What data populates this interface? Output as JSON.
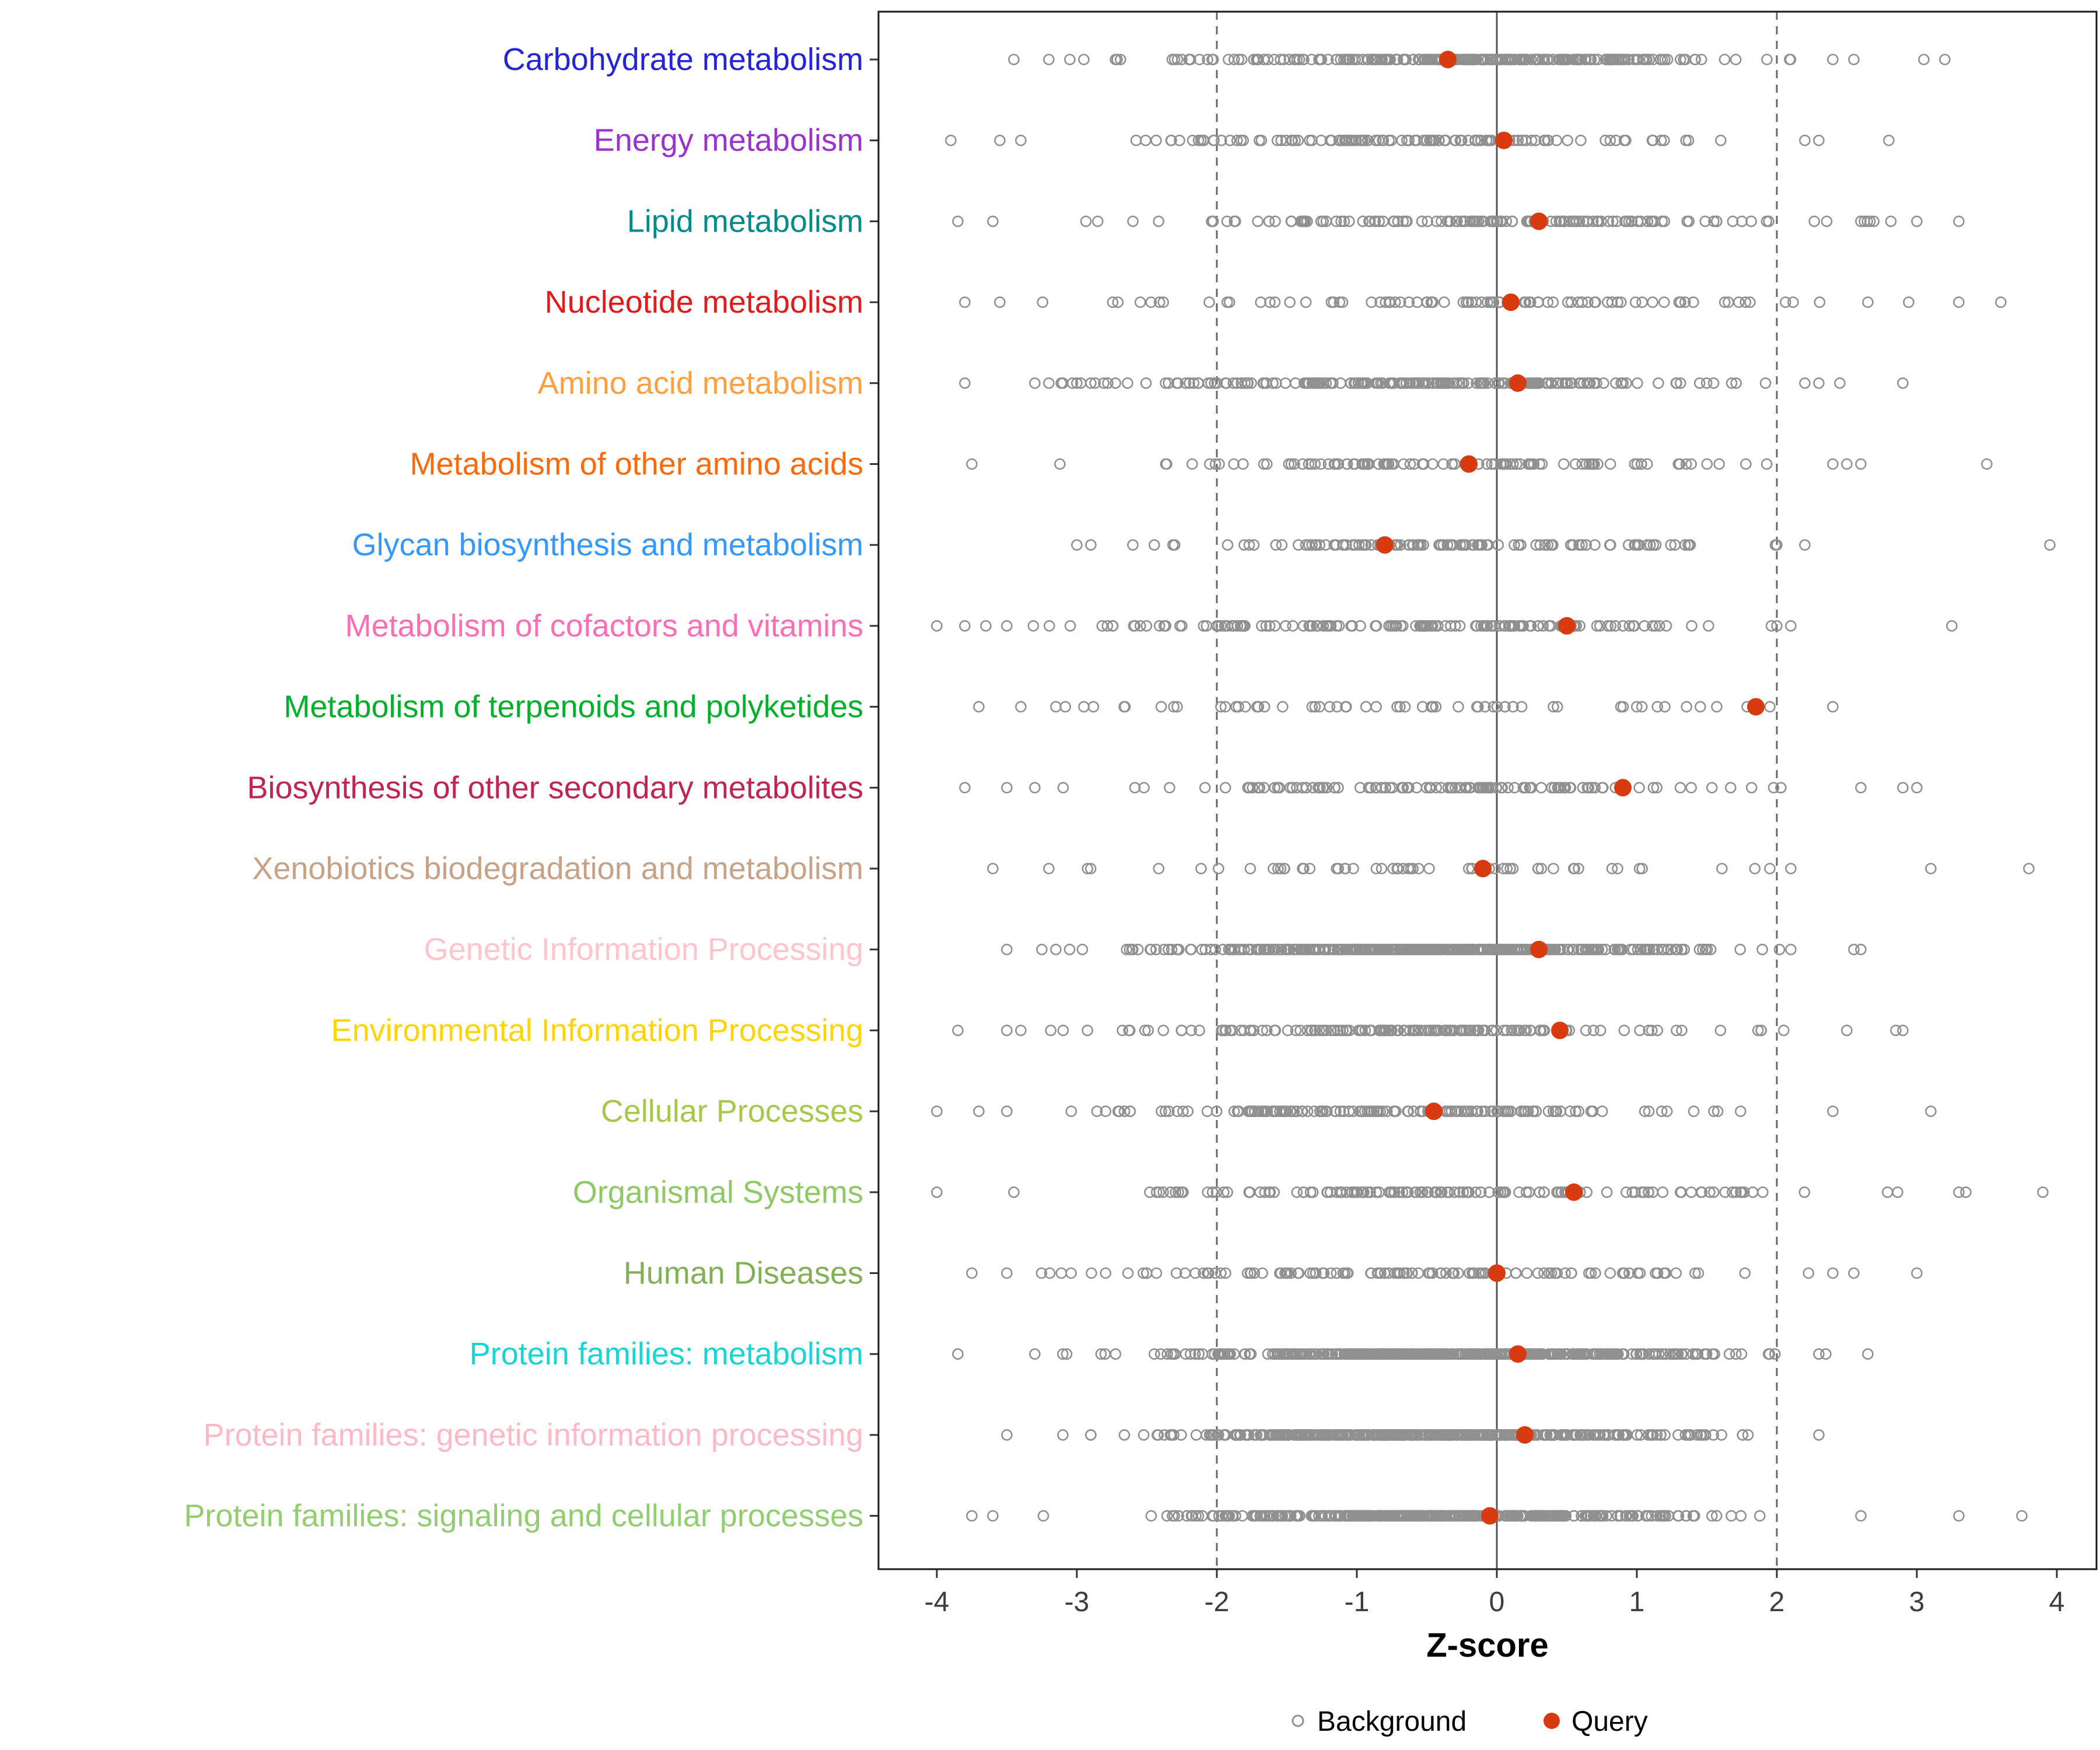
{
  "chart_data": {
    "type": "scatter",
    "subtype": "strip-plot",
    "title": "",
    "xlabel": "Z-score",
    "x_ticks": [
      -4,
      -3,
      -2,
      -1,
      0,
      1,
      2,
      3,
      4
    ],
    "x_range": [
      -4.4,
      4.3
    ],
    "zero_line": 0,
    "threshold_lines": [
      -2,
      2
    ],
    "grid": false,
    "legend": {
      "position": "bottom",
      "background_label": "Background",
      "query_label": "Query"
    },
    "colors": {
      "background_point": "#909090",
      "query_point": "#D93B10",
      "axis_text": "#3c3c3c",
      "panel_border": "#1a1a1a",
      "zero_line": "#555555",
      "threshold_line": "#666666",
      "legend_text": "#000000"
    },
    "series": [
      {
        "label": "Carbohydrate metabolism",
        "color": "#2323DC",
        "query": -0.35,
        "background": {
          "n": 280,
          "mean": -0.2,
          "sd": 0.95,
          "min": -3.3,
          "max": 2.3,
          "seed": 11,
          "outliers": [
            -3.45,
            -3.2,
            -3.05,
            -2.95,
            2.4,
            2.55,
            3.05,
            3.2
          ]
        }
      },
      {
        "label": "Energy metabolism",
        "color": "#9A32CD",
        "query": 0.05,
        "background": {
          "n": 120,
          "mean": -0.7,
          "sd": 1.0,
          "min": -3.4,
          "max": 2.2,
          "seed": 12,
          "outliers": [
            -3.9,
            -3.55,
            -3.4,
            2.2,
            2.3,
            2.8
          ]
        }
      },
      {
        "label": "Lipid metabolism",
        "color": "#008B8B",
        "query": 0.3,
        "background": {
          "n": 140,
          "mean": 0.1,
          "sd": 1.15,
          "min": -3.3,
          "max": 2.9,
          "seed": 13,
          "outliers": [
            -3.85,
            -3.6,
            2.6,
            3.0,
            3.3
          ]
        }
      },
      {
        "label": "Nucleotide metabolism",
        "color": "#E31A1C",
        "query": 0.1,
        "background": {
          "n": 85,
          "mean": 0.0,
          "sd": 1.3,
          "min": -3.5,
          "max": 3.3,
          "seed": 14,
          "outliers": [
            -3.8,
            -3.55,
            2.65,
            3.3,
            3.6
          ]
        }
      },
      {
        "label": "Amino acid metabolism",
        "color": "#FFA040",
        "query": 0.15,
        "background": {
          "n": 200,
          "mean": -0.5,
          "sd": 1.05,
          "min": -3.2,
          "max": 2.2,
          "seed": 15,
          "outliers": [
            -3.8,
            -3.3,
            -3.2,
            -3.1,
            -3.0,
            -2.9,
            2.2,
            2.3,
            2.45,
            2.9
          ]
        }
      },
      {
        "label": "Metabolism of other amino acids",
        "color": "#FB6A0A",
        "query": -0.2,
        "background": {
          "n": 105,
          "mean": -0.3,
          "sd": 1.1,
          "min": -3.2,
          "max": 2.4,
          "seed": 16,
          "outliers": [
            -3.75,
            2.4,
            2.5,
            2.6,
            3.5
          ]
        }
      },
      {
        "label": "Glycan biosynthesis and metabolism",
        "color": "#3399FF",
        "query": -0.8,
        "background": {
          "n": 110,
          "mean": -0.4,
          "sd": 1.0,
          "min": -2.9,
          "max": 2.2,
          "seed": 17,
          "outliers": [
            -3.0,
            -2.9,
            -2.6,
            2.0,
            2.2,
            3.95
          ]
        }
      },
      {
        "label": "Metabolism of cofactors and vitamins",
        "color": "#FF6EB4",
        "query": 0.5,
        "background": {
          "n": 145,
          "mean": -0.6,
          "sd": 1.15,
          "min": -3.4,
          "max": 2.0,
          "seed": 18,
          "outliers": [
            -4.0,
            -3.8,
            -3.65,
            -3.5,
            2.0,
            2.1,
            3.25
          ]
        }
      },
      {
        "label": "Metabolism of terpenoids and polyketides",
        "color": "#00B02A",
        "query": 1.85,
        "background": {
          "n": 55,
          "mean": -0.6,
          "sd": 1.25,
          "min": -3.2,
          "max": 1.9,
          "seed": 19,
          "outliers": [
            -3.7,
            -3.4,
            -3.15,
            -2.95,
            1.95,
            2.4
          ]
        }
      },
      {
        "label": "Biosynthesis of other secondary metabolites",
        "color": "#C02455",
        "query": 0.9,
        "background": {
          "n": 115,
          "mean": -0.6,
          "sd": 1.1,
          "min": -3.2,
          "max": 2.4,
          "seed": 20,
          "outliers": [
            -3.8,
            -3.5,
            -3.3,
            2.6,
            2.9,
            3.0
          ]
        }
      },
      {
        "label": "Xenobiotics biodegradation and metabolism",
        "color": "#C8A287",
        "query": -0.1,
        "background": {
          "n": 55,
          "mean": -0.4,
          "sd": 1.2,
          "min": -3.2,
          "max": 2.2,
          "seed": 21,
          "outliers": [
            -3.6,
            -3.2,
            2.1,
            3.1,
            3.8
          ]
        }
      },
      {
        "label": "Genetic Information Processing",
        "color": "#FFC4CC",
        "query": 0.3,
        "background": {
          "n": 420,
          "mean": -0.5,
          "sd": 0.95,
          "min": -3.2,
          "max": 2.1,
          "seed": 22,
          "outliers": [
            -3.5,
            -3.25,
            -3.15,
            2.1,
            2.55,
            2.6
          ]
        }
      },
      {
        "label": "Environmental Information Processing",
        "color": "#FFD404",
        "query": 0.45,
        "background": {
          "n": 150,
          "mean": -0.8,
          "sd": 1.1,
          "min": -3.3,
          "max": 2.4,
          "seed": 23,
          "outliers": [
            -3.85,
            -3.5,
            -3.4,
            2.5,
            2.85,
            2.9
          ]
        }
      },
      {
        "label": "Cellular Processes",
        "color": "#A8C84B",
        "query": -0.45,
        "background": {
          "n": 150,
          "mean": -0.9,
          "sd": 1.1,
          "min": -3.4,
          "max": 2.2,
          "seed": 24,
          "outliers": [
            -4.0,
            -3.7,
            -3.5,
            2.4,
            3.1
          ]
        }
      },
      {
        "label": "Organismal Systems",
        "color": "#8FC965",
        "query": 0.55,
        "background": {
          "n": 140,
          "mean": -0.4,
          "sd": 1.25,
          "min": -3.3,
          "max": 3.0,
          "seed": 25,
          "outliers": [
            -4.0,
            -3.45,
            3.3,
            3.35,
            3.9
          ]
        }
      },
      {
        "label": "Human Diseases",
        "color": "#83AF57",
        "query": 0.0,
        "background": {
          "n": 125,
          "mean": -0.7,
          "sd": 1.1,
          "min": -3.4,
          "max": 2.3,
          "seed": 26,
          "outliers": [
            -3.75,
            -3.5,
            2.4,
            2.55,
            3.0
          ]
        }
      },
      {
        "label": "Protein families: metabolism",
        "color": "#17D5D5",
        "query": 0.15,
        "background": {
          "n": 480,
          "mean": -0.3,
          "sd": 0.9,
          "min": -3.3,
          "max": 2.2,
          "seed": 27,
          "outliers": [
            -3.85,
            -3.3,
            -3.1,
            2.3,
            2.35,
            2.65
          ]
        }
      },
      {
        "label": "Protein families: genetic information processing",
        "color": "#FFB9C6",
        "query": 0.2,
        "background": {
          "n": 470,
          "mean": -0.4,
          "sd": 0.9,
          "min": -3.1,
          "max": 2.1,
          "seed": 28,
          "outliers": [
            -3.5,
            -3.1,
            -2.9,
            2.3
          ]
        }
      },
      {
        "label": "Protein families: signaling and cellular processes",
        "color": "#92CE70",
        "query": -0.05,
        "background": {
          "n": 400,
          "mean": -0.4,
          "sd": 0.95,
          "min": -3.4,
          "max": 2.4,
          "seed": 29,
          "outliers": [
            -3.75,
            -3.6,
            2.6,
            3.3,
            3.75
          ]
        }
      }
    ]
  }
}
